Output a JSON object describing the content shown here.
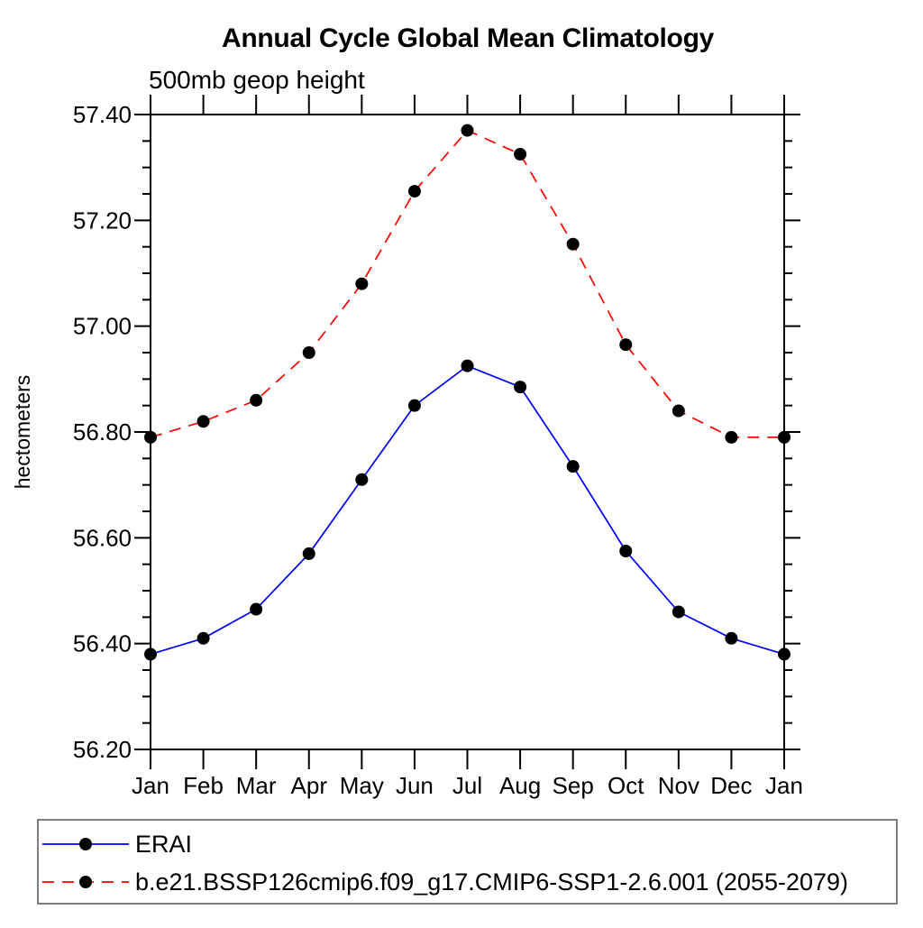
{
  "chart_data": {
    "type": "line",
    "title": "Annual Cycle Global Mean Climatology",
    "subtitle": "500mb geop height",
    "ylabel": "hectometers",
    "categories": [
      "Jan",
      "Feb",
      "Mar",
      "Apr",
      "May",
      "Jun",
      "Jul",
      "Aug",
      "Sep",
      "Oct",
      "Nov",
      "Dec",
      "Jan"
    ],
    "ylim": [
      56.2,
      57.4
    ],
    "ytick_interval": 0.2,
    "yminor_interval": 0.05,
    "ytick_labels": [
      "56.20",
      "56.40",
      "56.60",
      "56.80",
      "57.00",
      "57.20",
      "57.40"
    ],
    "grid": false,
    "legend_position": "bottom-left-box",
    "frame_color": "#000000",
    "marker_color": "#000000",
    "series": [
      {
        "name": "ERAI",
        "color": "#0000ff",
        "line_style": "solid",
        "marker": "filled-circle",
        "values": [
          56.38,
          56.41,
          56.465,
          56.57,
          56.71,
          56.85,
          56.925,
          56.885,
          56.735,
          56.575,
          56.46,
          56.41,
          56.38
        ]
      },
      {
        "name": "b.e21.BSSP126cmip6.f09_g17.CMIP6-SSP1-2.6.001 (2055-2079)",
        "color": "#ff0000",
        "line_style": "dashed",
        "marker": "filled-circle",
        "values": [
          56.79,
          56.82,
          56.86,
          56.95,
          57.08,
          57.255,
          57.37,
          57.325,
          57.155,
          56.965,
          56.84,
          56.79,
          56.79
        ]
      }
    ]
  }
}
